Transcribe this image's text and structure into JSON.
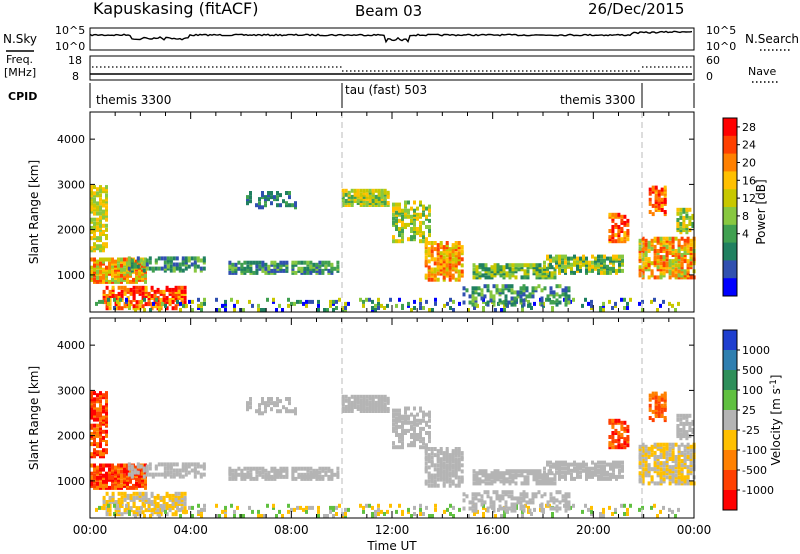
{
  "header": {
    "station": "Kapuskasing (fitACF)",
    "beam": "Beam 03",
    "date": "26/Dec/2015"
  },
  "noise_panel": {
    "left_label": "N.Sky",
    "right_label": "N.Search",
    "left_ticks": [
      "10^5",
      "10^0"
    ],
    "right_ticks": [
      "10^5",
      "10^0"
    ]
  },
  "freq_panel": {
    "left_label_1": "Freq.",
    "left_label_2": "[MHz]",
    "right_label": "Nave",
    "left_ticks": [
      "18",
      "8"
    ],
    "right_ticks": [
      "60",
      "0"
    ]
  },
  "cpid_panel": {
    "label": "CPID",
    "segments": [
      {
        "name": "themis 3300",
        "start": 0,
        "end": 10
      },
      {
        "name": "tau (fast) 503",
        "start": 10,
        "end": 22
      },
      {
        "name": "themis 3300",
        "start": 22,
        "end": 24
      }
    ],
    "printed_labels": [
      "themis 3300",
      "tau (fast) 503",
      "themis 3300"
    ]
  },
  "chart_data": [
    {
      "type": "heatmap",
      "name": "power",
      "ylabel": "Slant Range [km]",
      "colorbar_label": "Power [dB]",
      "colorbar_ticks": [
        "28",
        "24",
        "20",
        "16",
        "12",
        "8",
        "4"
      ],
      "colorbar_colors": [
        "#ff0000",
        "#ff4000",
        "#ff8000",
        "#ffc000",
        "#c8c800",
        "#88c840",
        "#40a050",
        "#208060",
        "#3050b0",
        "#0000ff"
      ],
      "yticks": [
        "4000",
        "3000",
        "2000",
        "1000"
      ],
      "ylim": [
        180,
        4600
      ],
      "xlim_hours": [
        0,
        24
      ]
    },
    {
      "type": "heatmap",
      "name": "velocity",
      "ylabel": "Slant Range [km]",
      "colorbar_label": "Velocity [m s^-1]",
      "colorbar_ticks": [
        "1000",
        "500",
        "100",
        "25",
        "-25",
        "-100",
        "-500",
        "-1000"
      ],
      "colorbar_colors": [
        "#1f3fcf",
        "#2f7fb0",
        "#2e8f5a",
        "#60c040",
        "#b4b4b4",
        "#ffc000",
        "#ff8000",
        "#ff4000",
        "#ff0000"
      ],
      "yticks": [
        "4000",
        "3000",
        "2000",
        "1000"
      ],
      "ylim": [
        180,
        4600
      ],
      "xlim_hours": [
        0,
        24
      ],
      "xticks": [
        "00:00",
        "04:00",
        "08:00",
        "12:00",
        "16:00",
        "20:00",
        "00:00"
      ],
      "xlabel": "Time UT"
    }
  ]
}
